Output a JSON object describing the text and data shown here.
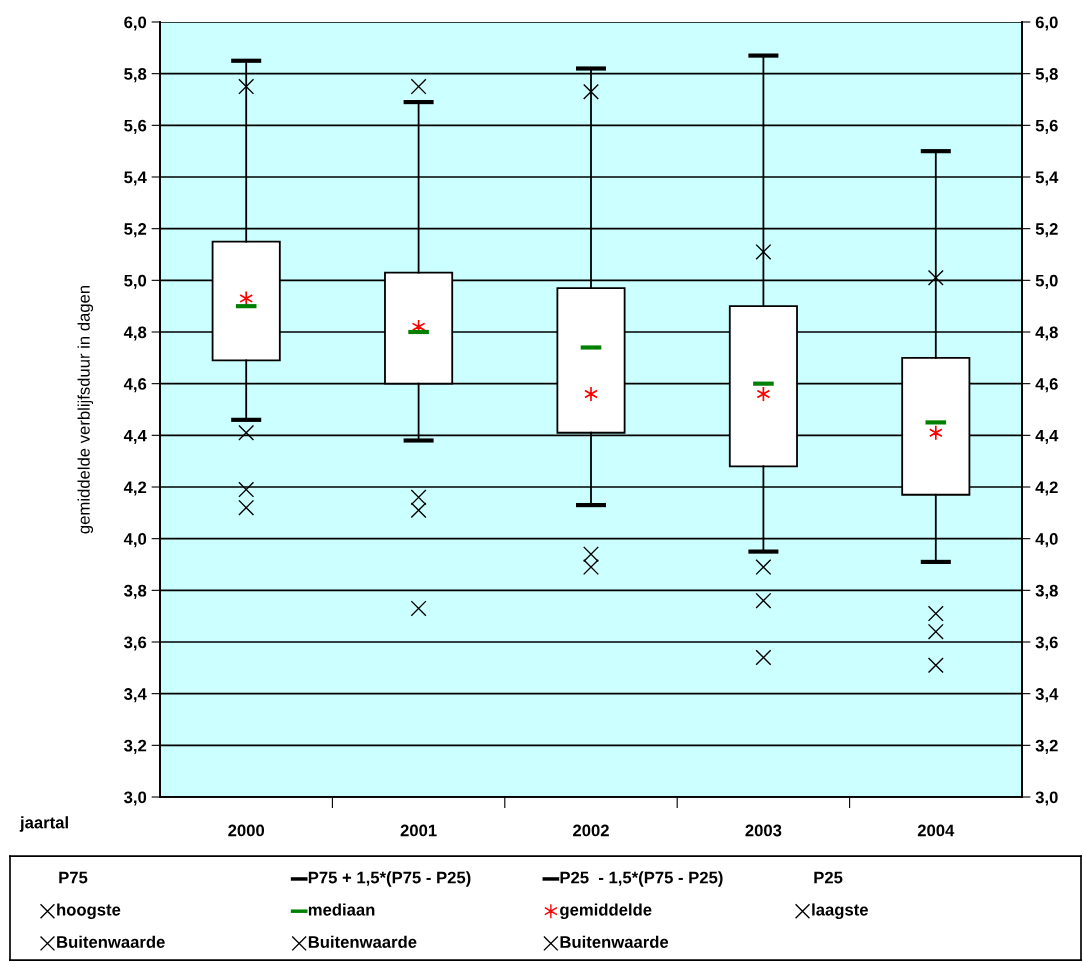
{
  "chart_data": {
    "type": "box",
    "ylabel": "gemiddelde verblijfsduur in dagen",
    "xlabel": "jaartal",
    "categories": [
      "2000",
      "2001",
      "2002",
      "2003",
      "2004"
    ],
    "boxes": [
      {
        "low": 4.46,
        "q1": 4.69,
        "median": 4.9,
        "q3": 5.15,
        "high": 5.85,
        "mean": 4.93
      },
      {
        "low": 4.38,
        "q1": 4.6,
        "median": 4.8,
        "q3": 5.03,
        "high": 5.69,
        "mean": 4.82
      },
      {
        "low": 4.13,
        "q1": 4.41,
        "median": 4.74,
        "q3": 4.97,
        "high": 5.82,
        "mean": 4.56
      },
      {
        "low": 3.95,
        "q1": 4.28,
        "median": 4.6,
        "q3": 4.9,
        "high": 5.87,
        "mean": 4.56
      },
      {
        "low": 3.91,
        "q1": 4.17,
        "median": 4.45,
        "q3": 4.7,
        "high": 5.5,
        "mean": 4.41
      }
    ],
    "series": [
      {
        "name": "hoogste",
        "type": "scatter",
        "color": "#000000",
        "values": [
          5.75,
          5.75,
          5.73,
          5.11,
          5.01
        ]
      },
      {
        "name": "laagste",
        "type": "scatter",
        "color": "#000000",
        "values": [
          4.12,
          3.73,
          3.89,
          3.54,
          3.51
        ]
      },
      {
        "name": "Buitenwaarde",
        "type": "scatter",
        "color": "#000000",
        "values": [
          4.41,
          4.16,
          3.94,
          3.89,
          3.71
        ]
      },
      {
        "name": "Buitenwaarde",
        "type": "scatter",
        "color": "#000000",
        "values": [
          4.19,
          4.11,
          null,
          3.76,
          3.64
        ]
      },
      {
        "name": "Buitenwaarde",
        "type": "scatter",
        "color": "#000000",
        "values": [
          null,
          null,
          null,
          null,
          null
        ]
      }
    ],
    "annotations": [
      "P75",
      "P75 + 1,5*(P75 - P25)",
      "P25  - 1,5*(P75 - P25)",
      "P25",
      "mediaan",
      "gemiddelde"
    ],
    "marker": "cross",
    "ylim": [
      3.0,
      6.0
    ],
    "yticks": [
      {
        "value": 3.0,
        "label": "3,0"
      },
      {
        "value": 3.2,
        "label": "3,2"
      },
      {
        "value": 3.4,
        "label": "3,4"
      },
      {
        "value": 3.6,
        "label": "3,6"
      },
      {
        "value": 3.8,
        "label": "3,8"
      },
      {
        "value": 4.0,
        "label": "4,0"
      },
      {
        "value": 4.2,
        "label": "4,2"
      },
      {
        "value": 4.4,
        "label": "4,4"
      },
      {
        "value": 4.6,
        "label": "4,6"
      },
      {
        "value": 4.8,
        "label": "4,8"
      },
      {
        "value": 5.0,
        "label": "5,0"
      },
      {
        "value": 5.2,
        "label": "5,2"
      },
      {
        "value": 5.4,
        "label": "5,4"
      },
      {
        "value": 5.6,
        "label": "5,6"
      },
      {
        "value": 5.8,
        "label": "5,8"
      },
      {
        "value": 6.0,
        "label": "6,0"
      }
    ],
    "y2lim": [
      3.0,
      6.0
    ],
    "y2ticks": [
      {
        "value": 3.0,
        "label": "3,0"
      },
      {
        "value": 3.2,
        "label": "3,2"
      },
      {
        "value": 3.4,
        "label": "3,4"
      },
      {
        "value": 3.6,
        "label": "3,6"
      },
      {
        "value": 3.8,
        "label": "3,8"
      },
      {
        "value": 4.0,
        "label": "4,0"
      },
      {
        "value": 4.2,
        "label": "4,2"
      },
      {
        "value": 4.4,
        "label": "4,4"
      },
      {
        "value": 4.6,
        "label": "4,6"
      },
      {
        "value": 4.8,
        "label": "4,8"
      },
      {
        "value": 5.0,
        "label": "5,0"
      },
      {
        "value": 5.2,
        "label": "5,2"
      },
      {
        "value": 5.4,
        "label": "5,4"
      },
      {
        "value": 5.6,
        "label": "5,6"
      },
      {
        "value": 5.8,
        "label": "5,8"
      },
      {
        "value": 6.0,
        "label": "6,0"
      }
    ],
    "grid": "y",
    "legend": "bottom"
  }
}
